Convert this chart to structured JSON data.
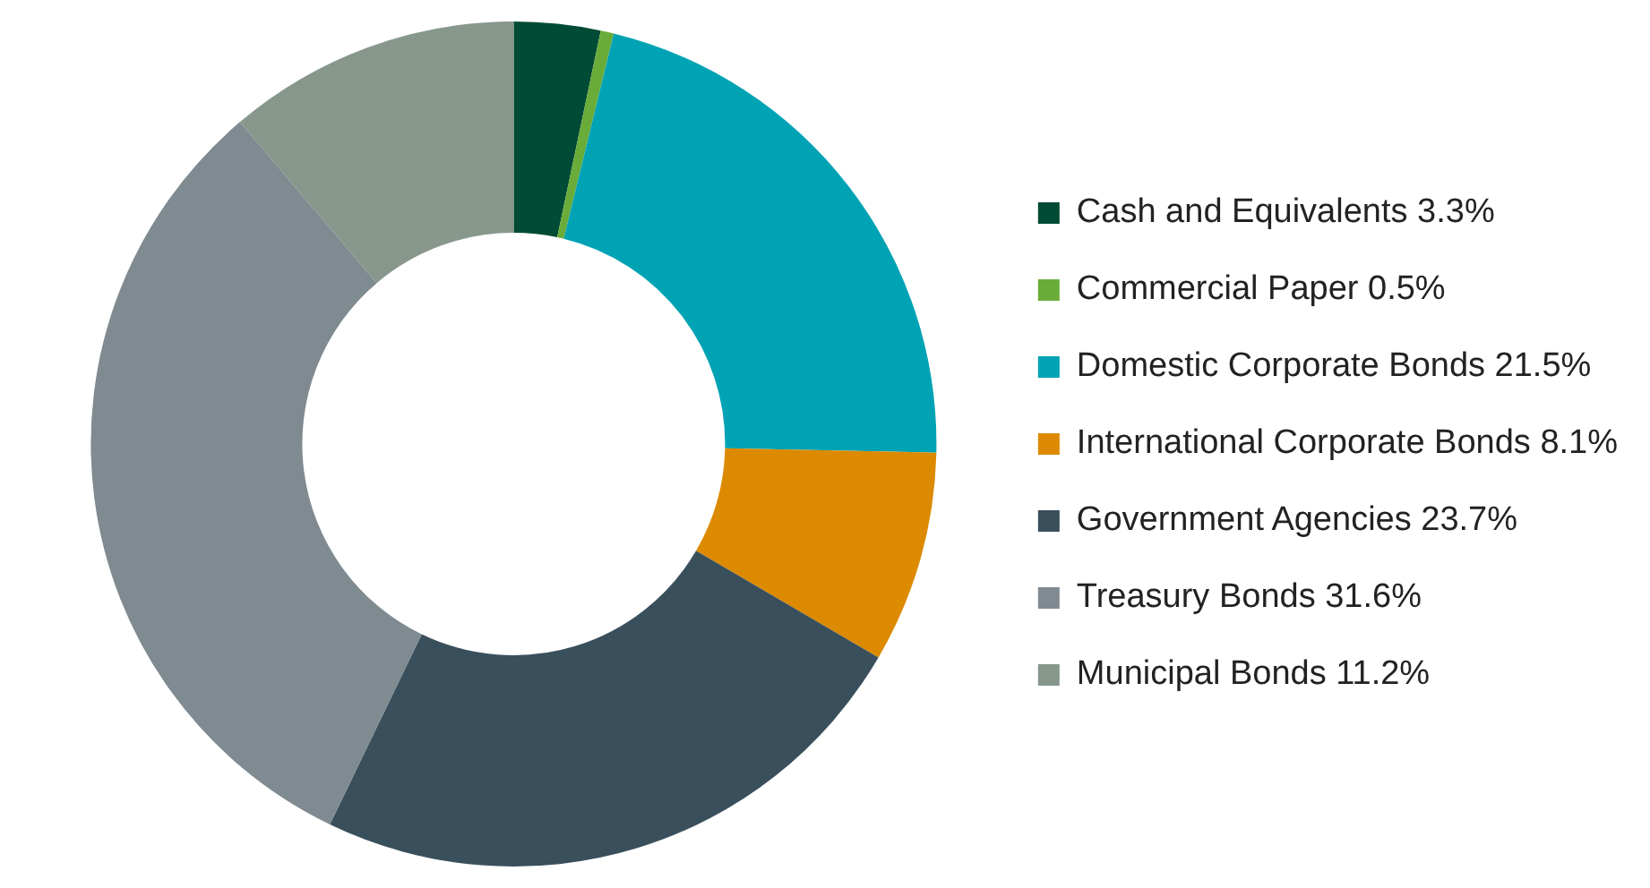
{
  "chart_data": {
    "type": "donut",
    "categories": [
      "Cash and Equivalents 3.3%",
      "Commercial Paper 0.5%",
      "Domestic Corporate Bonds 21.5%",
      "International Corporate Bonds 8.1%",
      "Government Agencies 23.7%",
      "Treasury Bonds 31.6%",
      "Municipal Bonds 11.2%"
    ],
    "values": [
      3.3,
      0.5,
      21.5,
      8.1,
      23.7,
      31.6,
      11.2
    ],
    "colors": [
      "#004b35",
      "#6aac3a",
      "#00a3b4",
      "#dc8a00",
      "#3a4f5c",
      "#7f8a91",
      "#87978c"
    ],
    "legend": "right"
  }
}
